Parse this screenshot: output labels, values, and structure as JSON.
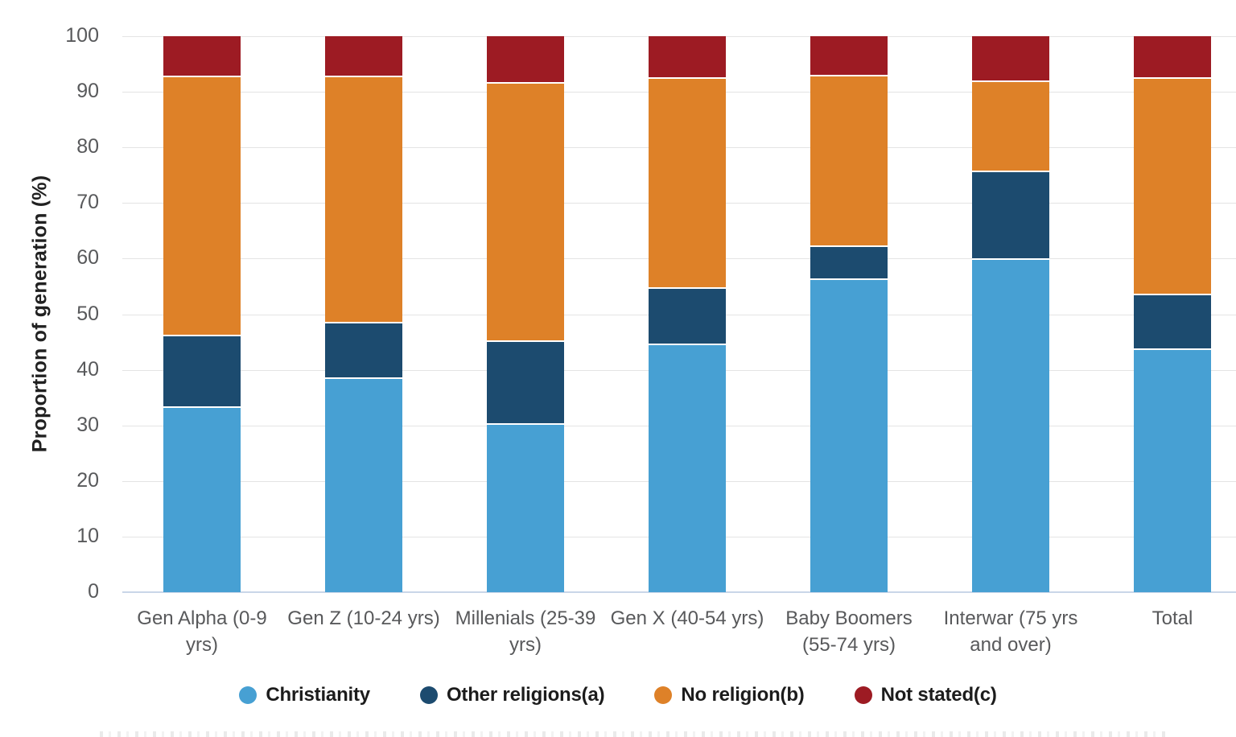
{
  "chart_data": {
    "type": "bar",
    "stacked": true,
    "orientation": "vertical",
    "title": "",
    "xlabel": "",
    "ylabel": "Proportion of generation (%)",
    "ylim": [
      0,
      100
    ],
    "yticks": [
      0,
      10,
      20,
      30,
      40,
      50,
      60,
      70,
      80,
      90,
      100
    ],
    "grid": "horizontal",
    "legend_position": "bottom",
    "categories": [
      "Gen Alpha (0-9 yrs)",
      "Gen Z (10-24 yrs)",
      "Millenials (25-39 yrs)",
      "Gen X (40-54 yrs)",
      "Baby Boomers (55-74 yrs)",
      "Interwar (75 yrs and over)",
      "Total"
    ],
    "series": [
      {
        "name": "Christianity",
        "color": "#47a0d3",
        "values": [
          33.4,
          38.6,
          30.4,
          44.7,
          56.5,
          60.0,
          43.9
        ]
      },
      {
        "name": "Other religions(a)",
        "color": "#1c4b6f",
        "values": [
          12.9,
          10.0,
          14.9,
          10.1,
          5.9,
          15.9,
          9.8
        ]
      },
      {
        "name": "No religion(b)",
        "color": "#de8128",
        "values": [
          46.6,
          44.3,
          46.5,
          37.8,
          30.6,
          16.2,
          38.9
        ]
      },
      {
        "name": "Not stated(c)",
        "color": "#9d1b23",
        "values": [
          7.1,
          7.1,
          8.2,
          7.4,
          7.0,
          7.9,
          7.4
        ]
      }
    ]
  },
  "colors": {
    "gridline": "#e4e4e4",
    "baseline": "#c9d6e8",
    "tick_text": "#58595b",
    "axis_title_text": "#212121",
    "legend_text": "#1c1c1c"
  }
}
